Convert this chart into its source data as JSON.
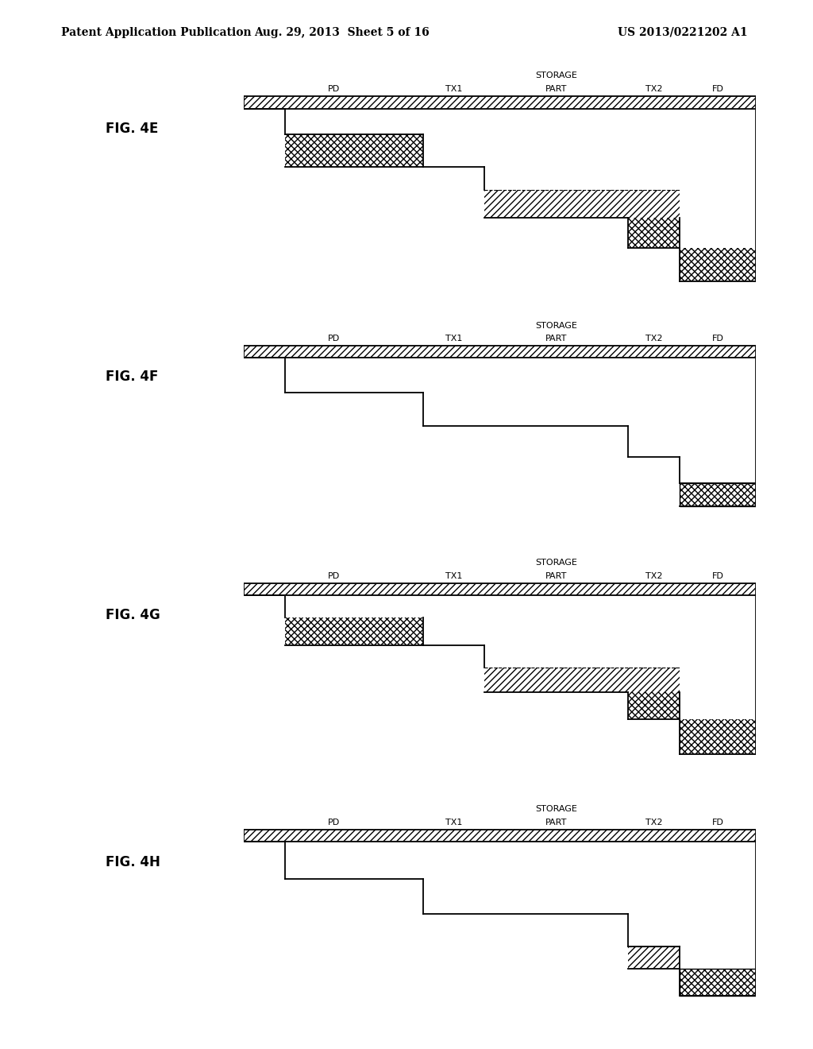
{
  "header_left": "Patent Application Publication",
  "header_mid": "Aug. 29, 2013  Sheet 5 of 16",
  "header_right": "US 2013/0221202 A1",
  "fig_labels": [
    "FIG. 4E",
    "FIG. 4F",
    "FIG. 4G",
    "FIG. 4H"
  ],
  "col_labels": [
    "PD",
    "TX1",
    "STORAGE\nPART",
    "TX2",
    "FD"
  ],
  "background_color": "#ffffff",
  "lw": 1.3
}
